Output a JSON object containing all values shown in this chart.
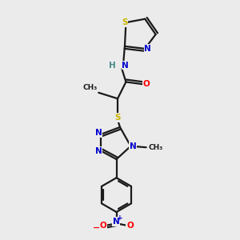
{
  "background_color": "#ebebeb",
  "bond_color": "#1a1a1a",
  "atom_colors": {
    "S": "#c8b400",
    "N": "#0000cc",
    "O": "#ff0000",
    "C": "#1a1a1a",
    "H": "#4a8a8a"
  }
}
